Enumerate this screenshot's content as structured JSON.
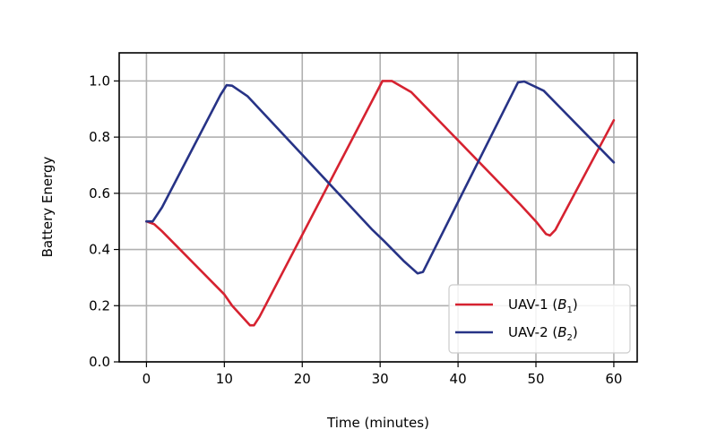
{
  "chart_data": {
    "type": "line",
    "xlabel": "Time (minutes)",
    "ylabel": "Battery Energy",
    "xlim": [
      -3.5,
      63
    ],
    "ylim": [
      0.0,
      1.1
    ],
    "x_ticks": [
      0,
      10,
      20,
      30,
      40,
      50,
      60
    ],
    "y_ticks": [
      "0.0",
      "0.2",
      "0.4",
      "0.6",
      "0.8",
      "1.0"
    ],
    "grid": true,
    "legend_position": "bottom-right",
    "series": [
      {
        "name": "UAV-1 (B1)",
        "legend_main": "UAV-1 (",
        "legend_var": "B",
        "legend_sub": "1",
        "legend_close": ")",
        "color": "#d62230",
        "points": [
          [
            0,
            0.5
          ],
          [
            1,
            0.49
          ],
          [
            2,
            0.465
          ],
          [
            10,
            0.24
          ],
          [
            11,
            0.2
          ],
          [
            13.3,
            0.13
          ],
          [
            13.8,
            0.13
          ],
          [
            14.5,
            0.16
          ],
          [
            30.3,
            1.0
          ],
          [
            31.5,
            1.0
          ],
          [
            34,
            0.96
          ],
          [
            48,
            0.56
          ],
          [
            50,
            0.5
          ],
          [
            51.3,
            0.455
          ],
          [
            51.8,
            0.45
          ],
          [
            52.5,
            0.47
          ],
          [
            60,
            0.86
          ]
        ]
      },
      {
        "name": "UAV-2 (B2)",
        "legend_main": "UAV-2 (",
        "legend_var": "B",
        "legend_sub": "2",
        "legend_close": ")",
        "color": "#273386",
        "points": [
          [
            0,
            0.5
          ],
          [
            0.8,
            0.5
          ],
          [
            2,
            0.55
          ],
          [
            9.5,
            0.95
          ],
          [
            10.3,
            0.985
          ],
          [
            11,
            0.983
          ],
          [
            13,
            0.945
          ],
          [
            29,
            0.47
          ],
          [
            30.5,
            0.43
          ],
          [
            33,
            0.36
          ],
          [
            34.8,
            0.315
          ],
          [
            35.5,
            0.32
          ],
          [
            47.7,
            0.995
          ],
          [
            48.5,
            0.998
          ],
          [
            51,
            0.965
          ],
          [
            60,
            0.71
          ]
        ]
      }
    ]
  }
}
